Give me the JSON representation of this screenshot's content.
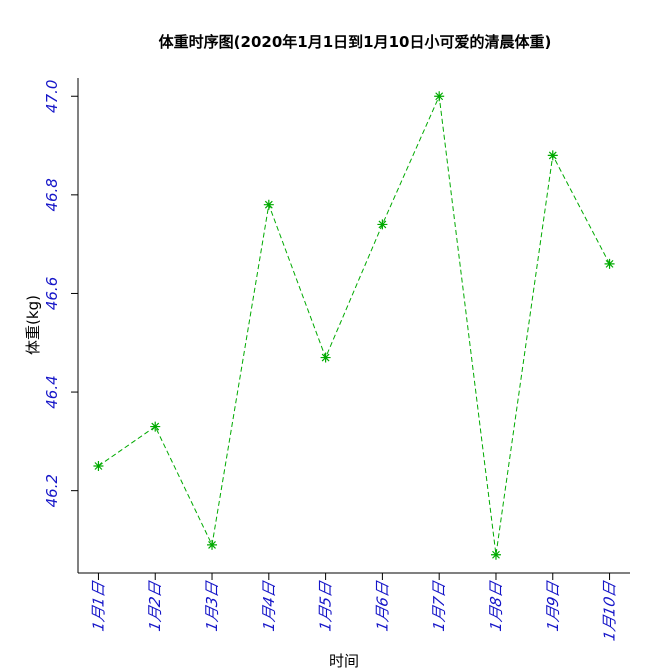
{
  "chart_data": {
    "type": "line",
    "title": "体重时序图(2020年1月1日到1月10日小可爱的清晨体重)",
    "x_label": "时间",
    "y_label": "体重(kg)",
    "categories": [
      "1月1日",
      "1月2日",
      "1月3日",
      "1月4日",
      "1月5日",
      "1月6日",
      "1月7日",
      "1月8日",
      "1月9日",
      "1月10日"
    ],
    "values": [
      46.25,
      46.33,
      46.09,
      46.78,
      46.47,
      46.74,
      47.0,
      46.07,
      46.88,
      46.66
    ],
    "color": "#00aa00",
    "tick_color": "#1515c8",
    "ylim": [
      46.033,
      47.037
    ],
    "yticks": [
      {
        "value": 46.2,
        "label": "46.2"
      },
      {
        "value": 46.4,
        "label": "46.4"
      },
      {
        "value": 46.6,
        "label": "46.6"
      },
      {
        "value": 46.8,
        "label": "46.8"
      },
      {
        "value": 47.0,
        "label": "47.0"
      }
    ]
  }
}
